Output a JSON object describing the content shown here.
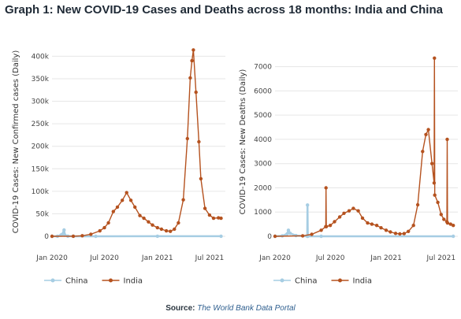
{
  "page_title": "Graph 1: New COVID-19 Cases and Deaths across 18 months: India and China",
  "source": {
    "label": "Source:",
    "text": "The World Bank Data Portal"
  },
  "colors": {
    "china": "#a6cde3",
    "india": "#b5521f",
    "grid": "#e6e6e6"
  },
  "chart_data": [
    {
      "type": "line",
      "title": "",
      "xlabel": "",
      "ylabel": "COVID-19 Cases: New Confirmed cases (Daily)",
      "x_ticks": [
        "Jan 2020",
        "Jul 2020",
        "Jan 2021",
        "Jul 2021"
      ],
      "y_ticks": [
        "0",
        "50k",
        "100k",
        "150k",
        "200k",
        "250k",
        "300k",
        "350k",
        "400k"
      ],
      "ylim": [
        0,
        420000
      ],
      "xlim": [
        "2020-01-01",
        "2021-08-25"
      ],
      "grid": true,
      "legend": "bottom-left",
      "series": [
        {
          "name": "China",
          "points": [
            [
              "2020-01-01",
              0
            ],
            [
              "2020-01-20",
              200
            ],
            [
              "2020-02-01",
              2600
            ],
            [
              "2020-02-05",
              3800
            ],
            [
              "2020-02-12",
              14000
            ],
            [
              "2020-02-15",
              2600
            ],
            [
              "2020-02-25",
              400
            ],
            [
              "2020-03-15",
              30
            ],
            [
              "2020-06-01",
              20
            ],
            [
              "2021-01-01",
              100
            ],
            [
              "2021-08-10",
              100
            ]
          ]
        },
        {
          "name": "India",
          "points": [
            [
              "2020-01-01",
              0
            ],
            [
              "2020-03-15",
              100
            ],
            [
              "2020-04-15",
              1200
            ],
            [
              "2020-05-15",
              4500
            ],
            [
              "2020-06-15",
              12000
            ],
            [
              "2020-07-01",
              19000
            ],
            [
              "2020-07-15",
              30000
            ],
            [
              "2020-08-01",
              55000
            ],
            [
              "2020-08-15",
              65000
            ],
            [
              "2020-09-01",
              80000
            ],
            [
              "2020-09-16",
              97000
            ],
            [
              "2020-10-01",
              80000
            ],
            [
              "2020-10-15",
              65000
            ],
            [
              "2020-11-01",
              46000
            ],
            [
              "2020-11-15",
              40000
            ],
            [
              "2020-12-01",
              32000
            ],
            [
              "2020-12-15",
              25000
            ],
            [
              "2021-01-01",
              19000
            ],
            [
              "2021-01-15",
              16000
            ],
            [
              "2021-02-01",
              12000
            ],
            [
              "2021-02-15",
              11000
            ],
            [
              "2021-03-01",
              16000
            ],
            [
              "2021-03-15",
              30000
            ],
            [
              "2021-04-01",
              81000
            ],
            [
              "2021-04-15",
              217000
            ],
            [
              "2021-04-25",
              352000
            ],
            [
              "2021-05-01",
              390000
            ],
            [
              "2021-05-06",
              414000
            ],
            [
              "2021-05-15",
              320000
            ],
            [
              "2021-05-25",
              210000
            ],
            [
              "2021-06-01",
              128000
            ],
            [
              "2021-06-15",
              62000
            ],
            [
              "2021-07-01",
              47000
            ],
            [
              "2021-07-15",
              40000
            ],
            [
              "2021-08-01",
              41000
            ],
            [
              "2021-08-10",
              40000
            ]
          ]
        }
      ]
    },
    {
      "type": "line",
      "title": "",
      "xlabel": "",
      "ylabel": "COVID-19 Cases: New Deaths (Daily)",
      "x_ticks": [
        "Jan 2020",
        "Jul 2020",
        "Jan 2021",
        "Jul 2021"
      ],
      "y_ticks": [
        "0",
        "1000",
        "2000",
        "3000",
        "4000",
        "5000",
        "6000",
        "7000"
      ],
      "ylim": [
        0,
        7800
      ],
      "xlim": [
        "2020-01-01",
        "2021-08-25"
      ],
      "grid": true,
      "legend": "bottom-left",
      "series": [
        {
          "name": "China",
          "points": [
            [
              "2020-01-01",
              0
            ],
            [
              "2020-01-25",
              20
            ],
            [
              "2020-02-10",
              100
            ],
            [
              "2020-02-14",
              250
            ],
            [
              "2020-02-20",
              120
            ],
            [
              "2020-03-10",
              30
            ],
            [
              "2020-04-16",
              0
            ],
            [
              "2020-04-17",
              1290
            ],
            [
              "2020-04-18",
              0
            ],
            [
              "2020-06-01",
              0
            ],
            [
              "2021-08-10",
              0
            ]
          ]
        },
        {
          "name": "India",
          "points": [
            [
              "2020-01-01",
              0
            ],
            [
              "2020-04-01",
              20
            ],
            [
              "2020-05-01",
              80
            ],
            [
              "2020-06-01",
              250
            ],
            [
              "2020-06-16",
              400
            ],
            [
              "2020-06-17",
              2000
            ],
            [
              "2020-06-18",
              400
            ],
            [
              "2020-07-01",
              450
            ],
            [
              "2020-07-15",
              600
            ],
            [
              "2020-08-01",
              800
            ],
            [
              "2020-08-15",
              950
            ],
            [
              "2020-09-01",
              1050
            ],
            [
              "2020-09-15",
              1150
            ],
            [
              "2020-10-01",
              1050
            ],
            [
              "2020-10-15",
              750
            ],
            [
              "2020-11-01",
              550
            ],
            [
              "2020-11-15",
              500
            ],
            [
              "2020-12-01",
              450
            ],
            [
              "2020-12-15",
              350
            ],
            [
              "2021-01-01",
              250
            ],
            [
              "2021-01-15",
              180
            ],
            [
              "2021-02-01",
              120
            ],
            [
              "2021-02-15",
              100
            ],
            [
              "2021-03-01",
              110
            ],
            [
              "2021-03-15",
              200
            ],
            [
              "2021-04-01",
              450
            ],
            [
              "2021-04-15",
              1300
            ],
            [
              "2021-05-01",
              3500
            ],
            [
              "2021-05-12",
              4200
            ],
            [
              "2021-05-20",
              4400
            ],
            [
              "2021-06-01",
              3000
            ],
            [
              "2021-06-08",
              2200
            ],
            [
              "2021-06-09",
              7350
            ],
            [
              "2021-06-10",
              1700
            ],
            [
              "2021-06-20",
              1400
            ],
            [
              "2021-07-01",
              900
            ],
            [
              "2021-07-10",
              700
            ],
            [
              "2021-07-20",
              600
            ],
            [
              "2021-07-21",
              4000
            ],
            [
              "2021-07-22",
              550
            ],
            [
              "2021-08-01",
              500
            ],
            [
              "2021-08-10",
              450
            ]
          ]
        }
      ]
    }
  ]
}
